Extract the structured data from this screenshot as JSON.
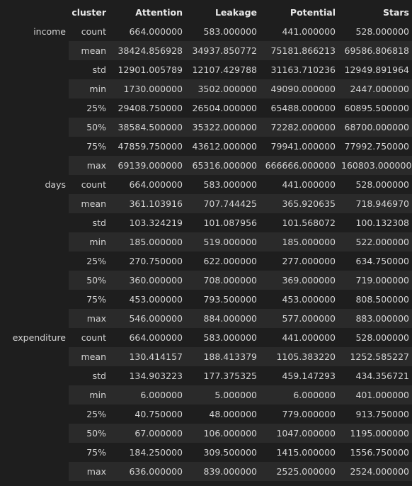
{
  "table": {
    "index_header": "",
    "columns_name": "cluster",
    "columns": [
      "Attention",
      "Leakage",
      "Potential",
      "Stars"
    ],
    "groups": [
      {
        "name": "income",
        "rows": [
          {
            "stat": "count",
            "values": [
              "664.000000",
              "583.000000",
              "441.000000",
              "528.000000"
            ]
          },
          {
            "stat": "mean",
            "values": [
              "38424.856928",
              "34937.850772",
              "75181.866213",
              "69586.806818"
            ]
          },
          {
            "stat": "std",
            "values": [
              "12901.005789",
              "12107.429788",
              "31163.710236",
              "12949.891964"
            ]
          },
          {
            "stat": "min",
            "values": [
              "1730.000000",
              "3502.000000",
              "49090.000000",
              "2447.000000"
            ]
          },
          {
            "stat": "25%",
            "values": [
              "29408.750000",
              "26504.000000",
              "65488.000000",
              "60895.500000"
            ]
          },
          {
            "stat": "50%",
            "values": [
              "38584.500000",
              "35322.000000",
              "72282.000000",
              "68700.000000"
            ]
          },
          {
            "stat": "75%",
            "values": [
              "47859.750000",
              "43612.000000",
              "79941.000000",
              "77992.750000"
            ]
          },
          {
            "stat": "max",
            "values": [
              "69139.000000",
              "65316.000000",
              "666666.000000",
              "160803.000000"
            ]
          }
        ]
      },
      {
        "name": "days",
        "rows": [
          {
            "stat": "count",
            "values": [
              "664.000000",
              "583.000000",
              "441.000000",
              "528.000000"
            ]
          },
          {
            "stat": "mean",
            "values": [
              "361.103916",
              "707.744425",
              "365.920635",
              "718.946970"
            ]
          },
          {
            "stat": "std",
            "values": [
              "103.324219",
              "101.087956",
              "101.568072",
              "100.132308"
            ]
          },
          {
            "stat": "min",
            "values": [
              "185.000000",
              "519.000000",
              "185.000000",
              "522.000000"
            ]
          },
          {
            "stat": "25%",
            "values": [
              "270.750000",
              "622.000000",
              "277.000000",
              "634.750000"
            ]
          },
          {
            "stat": "50%",
            "values": [
              "360.000000",
              "708.000000",
              "369.000000",
              "719.000000"
            ]
          },
          {
            "stat": "75%",
            "values": [
              "453.000000",
              "793.500000",
              "453.000000",
              "808.500000"
            ]
          },
          {
            "stat": "max",
            "values": [
              "546.000000",
              "884.000000",
              "577.000000",
              "883.000000"
            ]
          }
        ]
      },
      {
        "name": "expenditure",
        "rows": [
          {
            "stat": "count",
            "values": [
              "664.000000",
              "583.000000",
              "441.000000",
              "528.000000"
            ]
          },
          {
            "stat": "mean",
            "values": [
              "130.414157",
              "188.413379",
              "1105.383220",
              "1252.585227"
            ]
          },
          {
            "stat": "std",
            "values": [
              "134.903223",
              "177.375325",
              "459.147293",
              "434.356721"
            ]
          },
          {
            "stat": "min",
            "values": [
              "6.000000",
              "5.000000",
              "6.000000",
              "401.000000"
            ]
          },
          {
            "stat": "25%",
            "values": [
              "40.750000",
              "48.000000",
              "779.000000",
              "913.750000"
            ]
          },
          {
            "stat": "50%",
            "values": [
              "67.000000",
              "106.000000",
              "1047.000000",
              "1195.000000"
            ]
          },
          {
            "stat": "75%",
            "values": [
              "184.250000",
              "309.500000",
              "1415.000000",
              "1556.750000"
            ]
          },
          {
            "stat": "max",
            "values": [
              "636.000000",
              "839.000000",
              "2525.000000",
              "2524.000000"
            ]
          }
        ]
      }
    ]
  }
}
